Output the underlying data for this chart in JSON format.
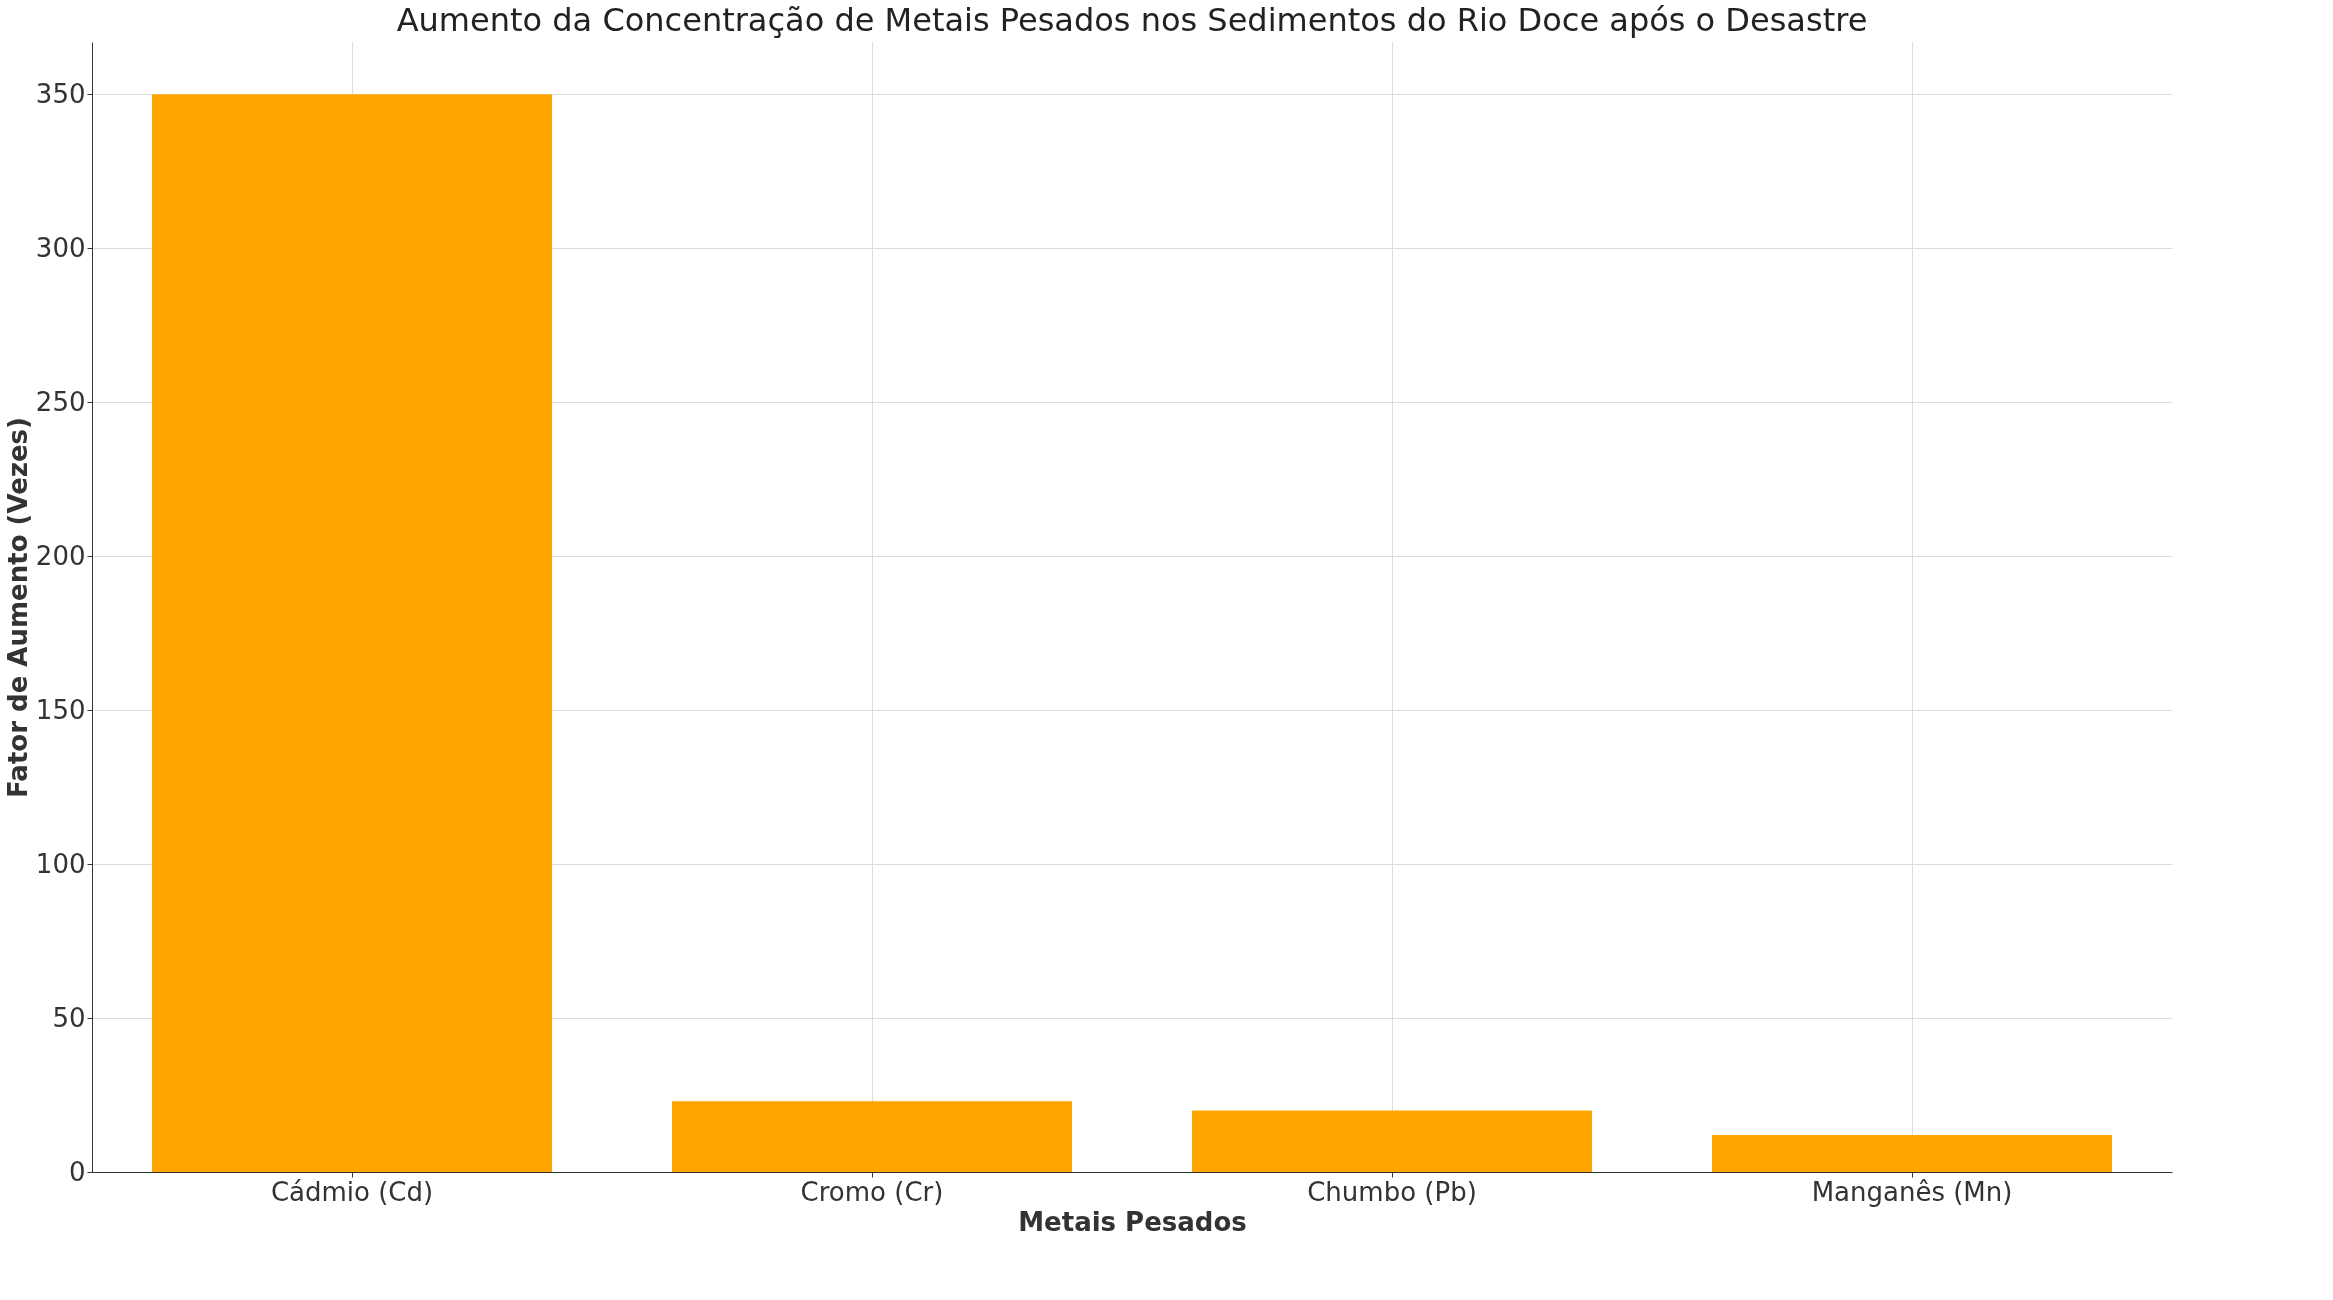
{
  "chart_data": {
    "type": "bar",
    "title": "Aumento da Concentração de Metais Pesados nos Sedimentos do Rio Doce após o Desastre",
    "xlabel": "Metais Pesados",
    "ylabel": "Fator de Aumento (Vezes)",
    "categories": [
      "Cádmio (Cd)",
      "Cromo (Cr)",
      "Chumbo (Pb)",
      "Manganês (Mn)"
    ],
    "values": [
      350,
      23,
      20,
      12
    ],
    "color": "#ffa500",
    "ylim": [
      0,
      367
    ],
    "yticks": [
      0,
      50,
      100,
      150,
      200,
      250,
      300,
      350
    ],
    "grid": true
  }
}
